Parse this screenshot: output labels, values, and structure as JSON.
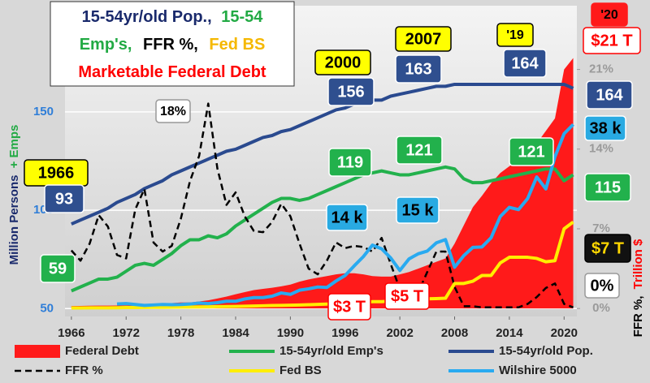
{
  "chart_data": {
    "type": "line",
    "title_parts": [
      {
        "text": "15-54yr/old Pop.,",
        "color": "#1a2a6c"
      },
      {
        "text": "15-54",
        "color": "#22aa44"
      },
      {
        "text": "Emp's,",
        "color": "#22aa44"
      },
      {
        "text": "FFR %,",
        "color": "#000000"
      },
      {
        "text": "Fed BS",
        "color": "#f5b800"
      },
      {
        "text": "Marketable Federal Debt",
        "color": "#ff0000"
      }
    ],
    "y_label_parts": [
      {
        "text": "Million Persons",
        "color": "#1a2a6c"
      },
      {
        "text": "+ Emps",
        "color": "#22aa44"
      }
    ],
    "y2_label_parts": [
      {
        "text": "FFR %,",
        "color": "#000000"
      },
      {
        "text": "Trillion $",
        "color": "#ff0000"
      }
    ],
    "x": [
      1966,
      1967,
      1968,
      1969,
      1970,
      1971,
      1972,
      1973,
      1974,
      1975,
      1976,
      1977,
      1978,
      1979,
      1980,
      1981,
      1982,
      1983,
      1984,
      1985,
      1986,
      1987,
      1988,
      1989,
      1990,
      1991,
      1992,
      1993,
      1994,
      1995,
      1996,
      1997,
      1998,
      1999,
      2000,
      2001,
      2002,
      2003,
      2004,
      2005,
      2006,
      2007,
      2008,
      2009,
      2010,
      2011,
      2012,
      2013,
      2014,
      2015,
      2016,
      2017,
      2018,
      2019,
      2020,
      2021
    ],
    "xlim": [
      1965.3,
      2021.4
    ],
    "xticks": [
      1966,
      1972,
      1978,
      1984,
      1990,
      1996,
      2002,
      2008,
      2014,
      2020
    ],
    "ylim": [
      46,
      204
    ],
    "yticks": [
      50,
      100,
      150
    ],
    "y2lim": [
      -0.7,
      26.6
    ],
    "y2ticks": [
      {
        "value": 0,
        "label": "0%"
      },
      {
        "value": 7,
        "label": "7%"
      },
      {
        "value": 14,
        "label": "14%"
      },
      {
        "value": 21,
        "label": "21%"
      }
    ],
    "y3lim": [
      -1.7,
      65.8
    ],
    "grid": true,
    "series": [
      {
        "name": "Federal Debt",
        "color": "#ff1a1a",
        "type": "area",
        "axis": "y2",
        "values": [
          0.22,
          0.23,
          0.24,
          0.25,
          0.25,
          0.26,
          0.27,
          0.27,
          0.27,
          0.36,
          0.44,
          0.48,
          0.53,
          0.53,
          0.62,
          0.72,
          0.88,
          1.05,
          1.25,
          1.44,
          1.62,
          1.72,
          1.82,
          1.95,
          2.1,
          2.36,
          2.55,
          2.7,
          2.85,
          3.0,
          3.1,
          3.1,
          3.0,
          2.85,
          2.8,
          2.8,
          3.0,
          3.2,
          3.5,
          3.8,
          4.1,
          4.4,
          5.7,
          7.3,
          8.9,
          9.9,
          11.0,
          11.9,
          12.5,
          13.0,
          14.0,
          14.5,
          15.6,
          16.7,
          21,
          22
        ]
      },
      {
        "name": "15-54yr/old Emp's",
        "color": "#22b14c",
        "type": "line",
        "values": [
          59,
          61,
          63,
          65,
          65,
          66,
          69,
          72,
          73,
          72,
          75,
          78,
          82,
          85,
          85,
          87,
          86,
          88,
          92,
          95,
          98,
          101,
          104,
          106,
          106,
          105,
          106,
          108,
          110,
          112,
          114,
          116,
          118,
          119,
          120,
          119,
          118,
          118,
          119,
          120,
          121,
          122,
          121,
          116,
          114,
          114,
          115,
          116,
          117,
          118,
          119,
          120,
          121,
          121,
          115,
          118
        ]
      },
      {
        "name": "15-54yr/old Pop.",
        "color": "#2a4a8f",
        "type": "line",
        "values": [
          93,
          95,
          97,
          99,
          101,
          104,
          106,
          108,
          111,
          113,
          115,
          118,
          120,
          122,
          124,
          126,
          128,
          130,
          131,
          133,
          135,
          137,
          138,
          140,
          141,
          143,
          145,
          147,
          149,
          151,
          152,
          154,
          155,
          156,
          156,
          158,
          159,
          160,
          161,
          162,
          163,
          163,
          164,
          164,
          164,
          164,
          164,
          164,
          164,
          164,
          164,
          164,
          164,
          164,
          164,
          162
        ]
      },
      {
        "name": "FFR %",
        "color": "#000000",
        "type": "line",
        "dash": true,
        "axis": "y2",
        "values": [
          5.1,
          4.2,
          5.7,
          8.2,
          7.2,
          4.7,
          4.4,
          8.7,
          10.5,
          5.8,
          5.0,
          5.5,
          7.9,
          11.2,
          13.4,
          18,
          12.3,
          9.1,
          10.2,
          8.1,
          6.8,
          6.7,
          7.6,
          9.2,
          8.1,
          5.7,
          3.5,
          3.0,
          4.2,
          5.8,
          5.3,
          5.5,
          5.4,
          5.0,
          6.2,
          3.9,
          1.7,
          1.1,
          1.4,
          3.2,
          5.0,
          5.0,
          1.9,
          0.2,
          0.2,
          0.1,
          0.1,
          0.1,
          0.1,
          0.1,
          0.4,
          1.0,
          1.8,
          2.2,
          0.4,
          0.1
        ]
      },
      {
        "name": "Fed BS",
        "color": "#ffee00",
        "type": "line",
        "axis": "y2",
        "values": [
          0.05,
          0.05,
          0.06,
          0.06,
          0.06,
          0.07,
          0.08,
          0.08,
          0.09,
          0.1,
          0.1,
          0.11,
          0.12,
          0.13,
          0.14,
          0.15,
          0.16,
          0.17,
          0.18,
          0.2,
          0.22,
          0.24,
          0.26,
          0.27,
          0.29,
          0.31,
          0.33,
          0.36,
          0.39,
          0.42,
          0.45,
          0.48,
          0.52,
          0.6,
          0.6,
          0.65,
          0.7,
          0.75,
          0.8,
          0.85,
          0.87,
          0.9,
          2.2,
          2.2,
          2.4,
          2.9,
          2.9,
          4.0,
          4.5,
          4.5,
          4.5,
          4.4,
          4.1,
          4.2,
          7.0,
          7.6
        ]
      },
      {
        "name": "Wilshire 5000",
        "color": "#29aaf0",
        "type": "line",
        "axis": "y3",
        "values": [
          null,
          null,
          null,
          null,
          null,
          1.0,
          1.1,
          0.9,
          0.7,
          0.8,
          0.9,
          0.85,
          0.9,
          1.0,
          1.2,
          1.1,
          1.3,
          1.6,
          1.6,
          2.1,
          2.4,
          2.4,
          2.7,
          3.4,
          3.1,
          4.0,
          4.3,
          4.7,
          4.6,
          6.0,
          7.2,
          9.3,
          11.3,
          13.8,
          13.0,
          11.0,
          8.3,
          10.8,
          11.9,
          12.5,
          14.3,
          15.0,
          9.0,
          11.5,
          13.3,
          13.4,
          15.4,
          20.0,
          22.0,
          21.5,
          23.9,
          28.6,
          26.0,
          33.0,
          38.0,
          40
        ]
      }
    ],
    "annotations": [
      "1966",
      "93",
      "59",
      "2000",
      "156",
      "2007",
      "163",
      "'19",
      "164",
      "'20",
      "$21 T",
      "164",
      "38 k",
      "119",
      "121",
      "121",
      "115",
      "14 k",
      "15 k",
      "$7 T",
      "0%",
      "$3 T",
      "$5 T",
      "18%"
    ]
  }
}
